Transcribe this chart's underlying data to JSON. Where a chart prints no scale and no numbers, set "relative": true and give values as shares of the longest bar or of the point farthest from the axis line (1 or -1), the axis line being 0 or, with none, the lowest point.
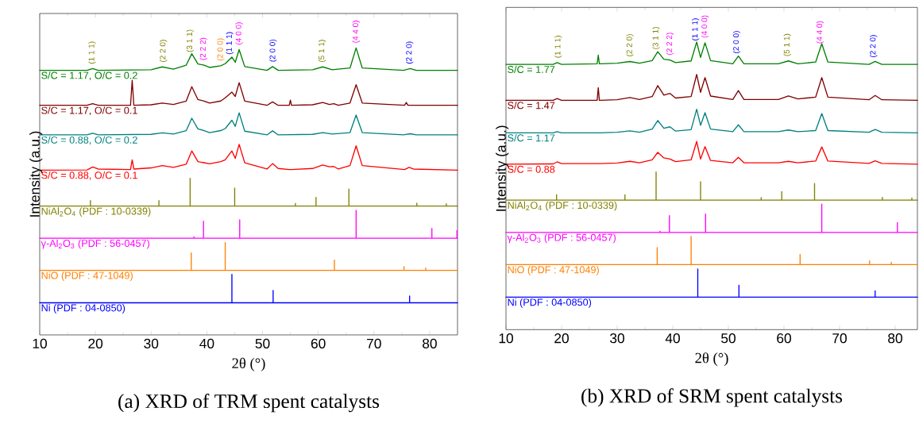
{
  "chart_data": [
    {
      "type": "line",
      "relative": true,
      "title": "(a) XRD of TRM spent catalysts",
      "xlabel": "2θ (°)",
      "ylabel": "Intensity (a.u.)",
      "xlim": [
        10,
        85
      ],
      "xticks": [
        10,
        20,
        30,
        40,
        50,
        60,
        70,
        80
      ],
      "tick_labels": "x",
      "legend": false,
      "series": [
        {
          "name": "S/C = 1.17, O/C = 0.2",
          "color": "#008000",
          "x": [
            10,
            18.5,
            19.5,
            20.5,
            30,
            32,
            34,
            36.3,
            37.3,
            38.4,
            39.5,
            40.5,
            42.5,
            43.3,
            44.5,
            45.1,
            45.8,
            46.8,
            50.8,
            51.8,
            52.8,
            59,
            60.8,
            62.5,
            65.7,
            66.8,
            67.9,
            75.3,
            76.5,
            77.6,
            85
          ],
          "values": [
            0.922,
            0.922,
            0.928,
            0.922,
            0.924,
            0.934,
            0.926,
            0.94,
            0.98,
            0.944,
            0.94,
            0.932,
            0.938,
            0.945,
            0.968,
            0.95,
            0.994,
            0.935,
            0.922,
            0.935,
            0.922,
            0.924,
            0.934,
            0.924,
            0.93,
            1.0,
            0.93,
            0.922,
            0.928,
            0.922,
            0.922
          ]
        },
        {
          "name": "S/C = 1.17, O/C = 0.1",
          "color": "#800000",
          "x": [
            10,
            18.5,
            19.5,
            20.5,
            26.3,
            26.6,
            26.9,
            30,
            32,
            34,
            36.3,
            37.3,
            38.4,
            39.5,
            40.5,
            42.5,
            43.3,
            44.5,
            45.1,
            45.8,
            46.8,
            50.8,
            51.8,
            52.8,
            54.8,
            55,
            55.2,
            59,
            60.8,
            62,
            62.8,
            63.6,
            65.7,
            66.8,
            67.9,
            75.5,
            75.8,
            76.1,
            85
          ],
          "values": [
            0.8,
            0.8,
            0.806,
            0.8,
            0.8,
            0.887,
            0.8,
            0.802,
            0.808,
            0.803,
            0.815,
            0.865,
            0.82,
            0.815,
            0.808,
            0.815,
            0.826,
            0.846,
            0.831,
            0.879,
            0.815,
            0.8,
            0.812,
            0.8,
            0.8,
            0.818,
            0.8,
            0.802,
            0.81,
            0.803,
            0.806,
            0.8,
            0.808,
            0.872,
            0.808,
            0.8,
            0.81,
            0.8,
            0.8
          ]
        },
        {
          "name": "S/C = 0.88, O/C = 0.2",
          "color": "#008080",
          "x": [
            10,
            18.5,
            19.5,
            20.5,
            30,
            32,
            34,
            36.3,
            37.3,
            38.4,
            39.5,
            40.5,
            42.5,
            43.3,
            44.5,
            45.1,
            45.8,
            46.8,
            50.8,
            51.8,
            52.8,
            59,
            60.8,
            62.5,
            65.7,
            66.8,
            67.9,
            75.3,
            76.5,
            77.6,
            85
          ],
          "values": [
            0.697,
            0.697,
            0.703,
            0.697,
            0.699,
            0.704,
            0.7,
            0.712,
            0.755,
            0.718,
            0.712,
            0.705,
            0.712,
            0.719,
            0.748,
            0.727,
            0.774,
            0.71,
            0.697,
            0.711,
            0.697,
            0.699,
            0.705,
            0.7,
            0.705,
            0.766,
            0.705,
            0.697,
            0.701,
            0.697,
            0.697
          ]
        },
        {
          "name": "S/C = 0.88, O/C = 0.1",
          "color": "#ff0000",
          "x": [
            10,
            18.5,
            19.5,
            20.5,
            26.3,
            26.6,
            26.9,
            30,
            32,
            34,
            36.3,
            37.3,
            38.4,
            39.5,
            40.5,
            42.5,
            43.3,
            44.5,
            45.1,
            45.8,
            46.8,
            50.8,
            51.8,
            52.8,
            54.8,
            55,
            55.2,
            59,
            60.8,
            62,
            62.8,
            63.6,
            65.7,
            66.8,
            67.9,
            75.5,
            76.3,
            77.1,
            85
          ],
          "values": [
            0.574,
            0.575,
            0.585,
            0.578,
            0.576,
            0.61,
            0.578,
            0.582,
            0.59,
            0.584,
            0.595,
            0.641,
            0.604,
            0.6,
            0.596,
            0.604,
            0.61,
            0.641,
            0.615,
            0.664,
            0.6,
            0.578,
            0.597,
            0.58,
            0.576,
            0.576,
            0.576,
            0.58,
            0.592,
            0.586,
            0.587,
            0.578,
            0.59,
            0.659,
            0.59,
            0.576,
            0.584,
            0.578,
            0.574
          ]
        },
        {
          "name": "NiAl$_{2}$O$_{4}$ (PDF : 10-0339)",
          "color": "#808000",
          "x": [
            10,
            19.1,
            19.1,
            19.1,
            31.4,
            31.4,
            31.4,
            37,
            37,
            37,
            45,
            45,
            45,
            55.9,
            55.9,
            55.9,
            59.6,
            59.6,
            59.6,
            65.5,
            65.5,
            65.5,
            77.7,
            77.7,
            77.7,
            83,
            83,
            83,
            85
          ],
          "values": [
            0.449,
            0.449,
            0.468,
            0.449,
            0.449,
            0.468,
            0.449,
            0.449,
            0.546,
            0.449,
            0.449,
            0.512,
            0.449,
            0.449,
            0.458,
            0.449,
            0.449,
            0.479,
            0.449,
            0.449,
            0.508,
            0.449,
            0.449,
            0.459,
            0.449,
            0.449,
            0.457,
            0.449,
            0.449
          ]
        },
        {
          "name": "γ-Al$_{2}$O$_{3}$ (PDF : 56-0457)",
          "color": "#ff00ff",
          "x": [
            10,
            37.7,
            37.7,
            37.7,
            39.4,
            39.4,
            39.4,
            45.9,
            45.9,
            45.9,
            66.8,
            66.8,
            66.8,
            80.4,
            80.4,
            80.4,
            84.9,
            84.9,
            84.9,
            85
          ],
          "values": [
            0.337,
            0.337,
            0.342,
            0.337,
            0.337,
            0.396,
            0.337,
            0.337,
            0.401,
            0.337,
            0.337,
            0.434,
            0.337,
            0.337,
            0.371,
            0.337,
            0.337,
            0.364,
            0.337,
            0.337
          ]
        },
        {
          "name": "NiO (PDF : 47-1049)",
          "color": "#ff8000",
          "x": [
            10,
            37.2,
            37.2,
            37.2,
            43.3,
            43.3,
            43.3,
            62.9,
            62.9,
            62.9,
            75.4,
            75.4,
            75.4,
            79.3,
            79.3,
            79.3,
            85
          ],
          "values": [
            0.225,
            0.225,
            0.286,
            0.225,
            0.225,
            0.322,
            0.225,
            0.225,
            0.261,
            0.225,
            0.225,
            0.238,
            0.225,
            0.225,
            0.233,
            0.225,
            0.225
          ]
        },
        {
          "name": "Ni (PDF : 04-0850)",
          "color": "#0000ff",
          "x": [
            10,
            44.5,
            44.5,
            44.5,
            51.9,
            51.9,
            51.9,
            76.4,
            76.4,
            76.4,
            85
          ],
          "values": [
            0.112,
            0.112,
            0.211,
            0.112,
            0.112,
            0.155,
            0.112,
            0.112,
            0.136,
            0.112,
            0.112
          ]
        }
      ],
      "annotations": [
        {
          "text": "(1 1 1)",
          "x": 19.4,
          "y": 0.927
        },
        {
          "text": "(2 2 0)",
          "x": 32.2,
          "y": 0.933
        },
        {
          "text": "(3 1 1)",
          "x": 37.0,
          "y": 0.968
        },
        {
          "text": "(2 2 2)",
          "x": 39.4,
          "y": 0.94
        },
        {
          "text": "(2 0 0)",
          "x": 42.5,
          "y": 0.938
        },
        {
          "text": "(1 1 1)",
          "x": 44.1,
          "y": 0.96
        },
        {
          "text": "(4 0 0)",
          "x": 45.8,
          "y": 0.994
        },
        {
          "text": "(2 0 0)",
          "x": 51.9,
          "y": 0.934
        },
        {
          "text": "(5 1 1)",
          "x": 60.7,
          "y": 0.933
        },
        {
          "text": "(4 4 0)",
          "x": 66.8,
          "y": 1.0
        },
        {
          "text": "(2 2 0)",
          "x": 76.4,
          "y": 0.927
        }
      ]
    },
    {
      "type": "line",
      "relative": true,
      "title": "(b) XRD of SRM spent catalysts",
      "xlabel": "2θ (°)",
      "ylabel": "Intensity (a.u.)",
      "xlim": [
        10,
        84
      ],
      "xticks": [
        10,
        20,
        30,
        40,
        50,
        60,
        70,
        80
      ],
      "tick_labels": "x",
      "legend": false,
      "series": [
        {
          "name": "S/C = 1.77",
          "color": "#008000",
          "x": [
            10,
            18.5,
            19.2,
            20,
            26.4,
            26.6,
            26.8,
            30,
            32.3,
            34,
            36.3,
            37.3,
            38.4,
            39.5,
            40.5,
            43.3,
            44.3,
            45,
            45.8,
            46.8,
            50.8,
            51.8,
            52.8,
            59,
            60.8,
            62.5,
            65.7,
            66.8,
            67.9,
            75.3,
            76.4,
            77.6,
            84
          ],
          "values": [
            0.922,
            0.922,
            0.928,
            0.922,
            0.924,
            0.954,
            0.924,
            0.926,
            0.932,
            0.926,
            0.935,
            0.966,
            0.94,
            0.937,
            0.928,
            0.934,
            1.0,
            0.946,
            0.997,
            0.935,
            0.924,
            0.951,
            0.924,
            0.924,
            0.934,
            0.924,
            0.93,
            0.994,
            0.93,
            0.922,
            0.932,
            0.922,
            0.922
          ]
        },
        {
          "name": "S/C = 1.47",
          "color": "#800000",
          "x": [
            10,
            18.5,
            19.2,
            20,
            26.4,
            26.6,
            26.8,
            30,
            32.3,
            34,
            36.3,
            37.3,
            38.4,
            39.5,
            40.5,
            43.3,
            44.3,
            45,
            45.8,
            46.8,
            50.8,
            51.8,
            52.8,
            59,
            60.8,
            62.5,
            65.7,
            66.8,
            67.9,
            75.3,
            76.4,
            77.6,
            84
          ],
          "values": [
            0.797,
            0.797,
            0.803,
            0.797,
            0.797,
            0.841,
            0.797,
            0.799,
            0.807,
            0.8,
            0.81,
            0.848,
            0.815,
            0.821,
            0.805,
            0.81,
            0.887,
            0.825,
            0.876,
            0.812,
            0.8,
            0.831,
            0.8,
            0.8,
            0.812,
            0.802,
            0.808,
            0.876,
            0.808,
            0.799,
            0.814,
            0.799,
            0.797
          ]
        },
        {
          "name": "S/C = 1.17",
          "color": "#008080",
          "x": [
            10,
            18.5,
            19.2,
            20,
            26.4,
            26.6,
            26.8,
            30,
            32.3,
            34,
            36.3,
            37.3,
            38.4,
            39.5,
            40.5,
            43.3,
            44.3,
            45,
            45.8,
            46.8,
            50.8,
            51.8,
            52.8,
            59,
            60.8,
            62.5,
            65.7,
            66.8,
            67.9,
            75.3,
            76.4,
            77.6,
            84
          ],
          "values": [
            0.684,
            0.684,
            0.688,
            0.684,
            0.684,
            0.684,
            0.684,
            0.686,
            0.691,
            0.686,
            0.697,
            0.727,
            0.7,
            0.705,
            0.69,
            0.695,
            0.766,
            0.71,
            0.754,
            0.697,
            0.688,
            0.712,
            0.688,
            0.688,
            0.694,
            0.688,
            0.692,
            0.751,
            0.692,
            0.686,
            0.696,
            0.686,
            0.684
          ]
        },
        {
          "name": "S/C = 0.88",
          "color": "#ff0000",
          "x": [
            10,
            18.5,
            19.2,
            20,
            26.4,
            26.6,
            26.8,
            30,
            32.3,
            34,
            36.3,
            37.3,
            38.4,
            39.5,
            40.5,
            43.3,
            44.3,
            45,
            45.8,
            46.8,
            50.8,
            51.8,
            52.8,
            59,
            60.8,
            62.5,
            65.7,
            66.8,
            67.9,
            75.3,
            76.4,
            77.6,
            84
          ],
          "values": [
            0.575,
            0.576,
            0.583,
            0.577,
            0.577,
            0.577,
            0.577,
            0.579,
            0.585,
            0.58,
            0.59,
            0.616,
            0.597,
            0.593,
            0.584,
            0.59,
            0.654,
            0.593,
            0.636,
            0.588,
            0.58,
            0.599,
            0.58,
            0.58,
            0.585,
            0.58,
            0.586,
            0.635,
            0.586,
            0.578,
            0.587,
            0.578,
            0.575
          ]
        },
        {
          "name": "NiAl$_{2}$O$_{4}$ (PDF : 10-0339)",
          "color": "#808000",
          "x": [
            10,
            19.1,
            19.1,
            19.1,
            31.4,
            31.4,
            31.4,
            37,
            37,
            37,
            45,
            45,
            45,
            55.9,
            55.9,
            55.9,
            59.6,
            59.6,
            59.6,
            65.5,
            65.5,
            65.5,
            77.7,
            77.7,
            77.7,
            83,
            83,
            83,
            84
          ],
          "values": [
            0.45,
            0.45,
            0.469,
            0.45,
            0.45,
            0.469,
            0.45,
            0.45,
            0.548,
            0.45,
            0.45,
            0.514,
            0.45,
            0.45,
            0.459,
            0.45,
            0.45,
            0.48,
            0.45,
            0.45,
            0.508,
            0.45,
            0.45,
            0.46,
            0.45,
            0.45,
            0.458,
            0.45,
            0.45
          ]
        },
        {
          "name": "γ-Al$_{2}$O$_{3}$ (PDF : 56-0457)",
          "color": "#ff00ff",
          "x": [
            10,
            37.7,
            37.7,
            37.7,
            39.4,
            39.4,
            39.4,
            45.9,
            45.9,
            45.9,
            66.8,
            66.8,
            66.8,
            80.4,
            80.4,
            80.4,
            84
          ],
          "values": [
            0.338,
            0.338,
            0.342,
            0.338,
            0.338,
            0.396,
            0.338,
            0.338,
            0.402,
            0.338,
            0.338,
            0.436,
            0.338,
            0.338,
            0.372,
            0.338,
            0.338
          ]
        },
        {
          "name": "NiO (PDF : 47-1049)",
          "color": "#ff8000",
          "x": [
            10,
            37.2,
            37.2,
            37.2,
            43.3,
            43.3,
            43.3,
            62.9,
            62.9,
            62.9,
            75.4,
            75.4,
            75.4,
            79.3,
            79.3,
            79.3,
            84
          ],
          "values": [
            0.226,
            0.226,
            0.285,
            0.226,
            0.226,
            0.324,
            0.226,
            0.226,
            0.261,
            0.226,
            0.226,
            0.239,
            0.226,
            0.226,
            0.234,
            0.226,
            0.226
          ]
        },
        {
          "name": "Ni (PDF : 04-0850)",
          "color": "#0000ff",
          "x": [
            10,
            44.5,
            44.5,
            44.5,
            51.9,
            51.9,
            51.9,
            76.4,
            76.4,
            76.4,
            84
          ],
          "values": [
            0.113,
            0.113,
            0.211,
            0.113,
            0.113,
            0.154,
            0.113,
            0.113,
            0.135,
            0.113,
            0.113
          ]
        }
      ],
      "annotations": [
        {
          "text": "(1 1 1)",
          "x": 19.4,
          "y": 0.927
        },
        {
          "text": "(2 2 0)",
          "x": 32.3,
          "y": 0.932
        },
        {
          "text": "(3 1 1)",
          "x": 37.0,
          "y": 0.957
        },
        {
          "text": "(2 2 2)",
          "x": 39.5,
          "y": 0.937
        },
        {
          "text": "(1 1 1)",
          "x": 44.1,
          "y": 0.987
        },
        {
          "text": "(4 0 0)",
          "x": 45.8,
          "y": 0.997
        },
        {
          "text": "(2 0 0)",
          "x": 51.5,
          "y": 0.943
        },
        {
          "text": "(5 1 1)",
          "x": 60.6,
          "y": 0.933
        },
        {
          "text": "(4 4 0)",
          "x": 66.5,
          "y": 0.977
        },
        {
          "text": "(2 2 0)",
          "x": 76.1,
          "y": 0.929
        }
      ]
    }
  ]
}
